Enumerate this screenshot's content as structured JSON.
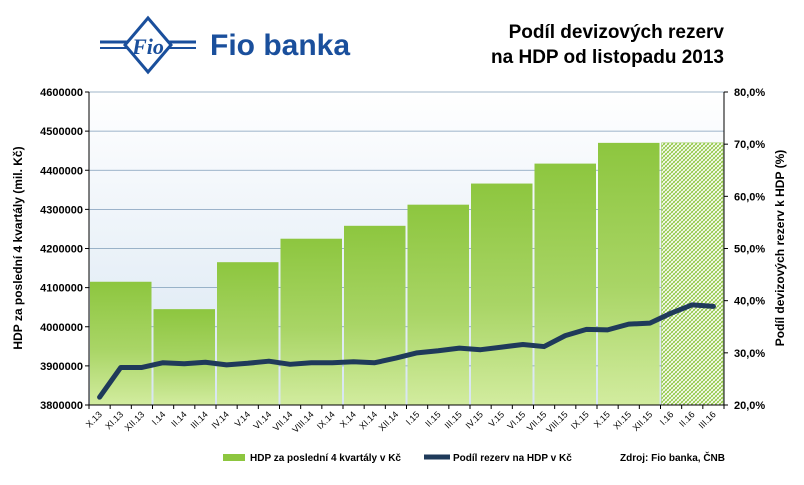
{
  "header": {
    "logo_text": "Fio banka",
    "logo_emblem_text": "Fio",
    "title_line1": "Podíl devizových  rezerv",
    "title_line2": "na HDP od listopadu  2013"
  },
  "legend": {
    "series1": "HDP za poslední 4 kvartály v Kč",
    "series2": "Podíl rezerv na HDP v Kč",
    "source": "Zdroj: Fio banka, ČNB"
  },
  "colors": {
    "bar_fill": "#8dc63f",
    "bar_fill_light": "#c5e38f",
    "line": "#1f3a5a",
    "grid": "#7f9db9",
    "logo_blue": "#1a4f9c"
  },
  "chart_data": {
    "type": "bar",
    "title": "Podíl devizových  rezerv na HDP od listopadu  2013",
    "ylabel": "HDP  za poslední  4 kvartály  (mil. Kč)",
    "y2label": "Podíl  devizových  rezerv  k HDP  (%)",
    "ylim": [
      3800000,
      4600000
    ],
    "y2lim": [
      20,
      80
    ],
    "yticks": [
      "3800000",
      "3900000",
      "4000000",
      "4100000",
      "4200000",
      "4300000",
      "4400000",
      "4500000",
      "4600000"
    ],
    "y2ticks": [
      "20,0%",
      "30,0%",
      "40,0%",
      "50,0%",
      "60,0%",
      "70,0%",
      "80,0%"
    ],
    "grid": true,
    "legend_position": "bottom",
    "categories": [
      "X.13",
      "XI.13",
      "XII.13",
      "I.14",
      "II.14",
      "III.14",
      "IV.14",
      "V.14",
      "VI.14",
      "VII.14",
      "VIII.14",
      "IX.14",
      "X.14",
      "XI.14",
      "XII.14",
      "I.15",
      "II.15",
      "III.15",
      "IV.15",
      "V.15",
      "VI.15",
      "VII.15",
      "VIII.15",
      "IX.15",
      "X.15",
      "XI.15",
      "XII.15",
      "I.16",
      "II.16",
      "III.16"
    ],
    "series": [
      {
        "name": "HDP za poslední 4 kvartály v Kč",
        "type": "bar",
        "quarters": [
          {
            "start": 0,
            "end": 2,
            "value": 4115000
          },
          {
            "start": 3,
            "end": 5,
            "value": 4045000
          },
          {
            "start": 6,
            "end": 8,
            "value": 4165000
          },
          {
            "start": 9,
            "end": 11,
            "value": 4225000
          },
          {
            "start": 12,
            "end": 14,
            "value": 4258000
          },
          {
            "start": 15,
            "end": 17,
            "value": 4312000
          },
          {
            "start": 18,
            "end": 20,
            "value": 4366000
          },
          {
            "start": 21,
            "end": 23,
            "value": 4417000
          },
          {
            "start": 24,
            "end": 26,
            "value": 4470000
          },
          {
            "start": 27,
            "end": 29,
            "value": 4470000,
            "projected": true
          }
        ]
      },
      {
        "name": "Podíl rezerv na HDP v Kč",
        "type": "line",
        "values": [
          21.5,
          27.2,
          27.2,
          28.1,
          27.9,
          28.2,
          27.7,
          28.0,
          28.4,
          27.8,
          28.1,
          28.1,
          28.3,
          28.1,
          29.0,
          30.0,
          30.4,
          30.9,
          30.6,
          31.1,
          31.6,
          31.2,
          33.3,
          34.5,
          34.4,
          35.5,
          35.7,
          37.6,
          39.2,
          38.9
        ]
      }
    ]
  }
}
